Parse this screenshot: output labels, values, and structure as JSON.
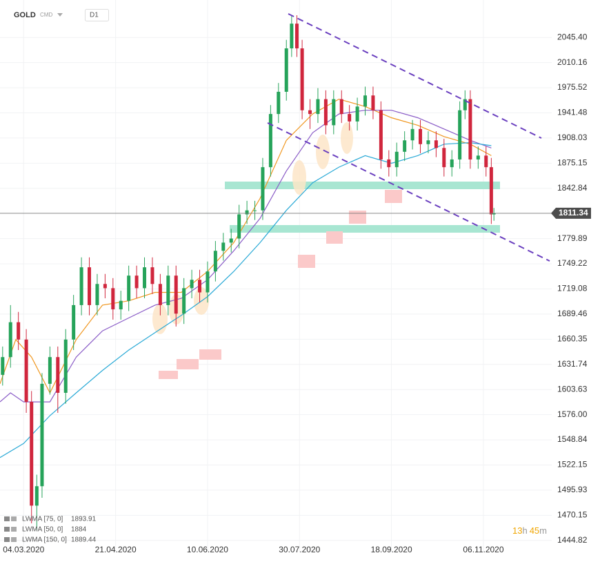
{
  "chart_data": {
    "type": "candlestick",
    "title": "GOLD",
    "subtitle": "CMD",
    "interval": "D1",
    "log_scale": true,
    "grid": true,
    "up_color": "#26a35a",
    "down_color": "#d0263d",
    "ylim": [
      1433,
      2099
    ],
    "xlim": [
      -9,
      201
    ],
    "yticks": [
      {
        "value": 2045.4,
        "label": "2045.40"
      },
      2010.16,
      1975.52,
      1941.48,
      1908.03,
      1875.15,
      1842.84,
      1779.89,
      1749.22,
      1719.08,
      1689.46,
      1660.35,
      1631.74,
      1603.63,
      {
        "value": 1576,
        "label": "1576.00"
      },
      1548.84,
      1522.15,
      1495.93,
      1470.15,
      1444.82
    ],
    "xticks": [
      {
        "value": 0,
        "label": "04.03.2020"
      },
      {
        "value": 35,
        "label": "21.04.2020"
      },
      {
        "value": 70,
        "label": "10.06.2020"
      },
      {
        "value": 105,
        "label": "30.07.2020"
      },
      {
        "value": 140,
        "label": "18.09.2020"
      },
      {
        "value": 175,
        "label": "06.11.2020"
      }
    ],
    "last_price": 1811.34,
    "countdown": [
      "13",
      "h",
      "45",
      "m"
    ],
    "x": [
      -8,
      -5,
      -2,
      1,
      3,
      5,
      7,
      10,
      13,
      16,
      19,
      22,
      25,
      28,
      31,
      34,
      37,
      40,
      43,
      46,
      49,
      52,
      55,
      58,
      61,
      64,
      67,
      70,
      73,
      76,
      79,
      82,
      85,
      88,
      91,
      94,
      97,
      100,
      102,
      104,
      106,
      109,
      112,
      115,
      118,
      121,
      124,
      127,
      130,
      133,
      136,
      139,
      142,
      145,
      148,
      151,
      154,
      157,
      160,
      163,
      166,
      168,
      170,
      173,
      176,
      178,
      179
    ],
    "open": [
      1620,
      1640,
      1680,
      1660,
      1590,
      1480,
      1500,
      1610,
      1640,
      1600,
      1660,
      1700,
      1745,
      1700,
      1725,
      1720,
      1695,
      1705,
      1735,
      1720,
      1745,
      1725,
      1700,
      1735,
      1690,
      1720,
      1730,
      1715,
      1740,
      1765,
      1775,
      1780,
      1810,
      1815,
      1815,
      1870,
      1940,
      1970,
      2030,
      2065,
      2030,
      1945,
      1940,
      1960,
      1925,
      1960,
      1940,
      1930,
      1950,
      1965,
      1945,
      1880,
      1870,
      1890,
      1905,
      1920,
      1900,
      1905,
      1895,
      1870,
      1880,
      1945,
      1960,
      1880,
      1885,
      1870,
      1810
    ],
    "high": [
      1652,
      1700,
      1692,
      1672,
      1602,
      1512,
      1622,
      1652,
      1652,
      1672,
      1712,
      1757,
      1757,
      1737,
      1737,
      1732,
      1717,
      1747,
      1747,
      1757,
      1757,
      1737,
      1747,
      1747,
      1732,
      1742,
      1742,
      1752,
      1777,
      1787,
      1792,
      1822,
      1827,
      1827,
      1882,
      1952,
      1982,
      2042,
      2077,
      2077,
      2042,
      1960,
      1975,
      1972,
      1972,
      1972,
      1952,
      1962,
      1977,
      1977,
      1957,
      1892,
      1902,
      1917,
      1932,
      1932,
      1917,
      1917,
      1907,
      1892,
      1957,
      1972,
      1972,
      1897,
      1897,
      1882,
      1818
    ],
    "low": [
      1608,
      1628,
      1648,
      1578,
      1462,
      1455,
      1488,
      1598,
      1578,
      1588,
      1648,
      1688,
      1688,
      1688,
      1708,
      1683,
      1683,
      1693,
      1708,
      1708,
      1713,
      1688,
      1688,
      1675,
      1678,
      1708,
      1703,
      1703,
      1728,
      1753,
      1763,
      1768,
      1798,
      1803,
      1803,
      1858,
      1928,
      1958,
      2018,
      2018,
      1933,
      1920,
      1928,
      1913,
      1913,
      1928,
      1918,
      1918,
      1938,
      1933,
      1868,
      1858,
      1858,
      1878,
      1893,
      1888,
      1888,
      1883,
      1858,
      1858,
      1868,
      1933,
      1868,
      1868,
      1858,
      1798,
      1802
    ],
    "close": [
      1640,
      1680,
      1660,
      1590,
      1480,
      1500,
      1610,
      1640,
      1600,
      1660,
      1700,
      1745,
      1700,
      1725,
      1720,
      1695,
      1705,
      1735,
      1720,
      1745,
      1725,
      1700,
      1735,
      1690,
      1720,
      1730,
      1715,
      1740,
      1765,
      1775,
      1780,
      1810,
      1815,
      1815,
      1870,
      1940,
      1970,
      2030,
      2065,
      2030,
      1945,
      1940,
      1960,
      1925,
      1960,
      1940,
      1930,
      1950,
      1965,
      1945,
      1880,
      1870,
      1890,
      1905,
      1920,
      1900,
      1905,
      1895,
      1870,
      1880,
      1945,
      1960,
      1880,
      1885,
      1870,
      1810,
      1811.34
    ],
    "series": [
      {
        "name": "LWMA [75, 0]",
        "legend_value": 1893.91,
        "color": "#f0961e",
        "x": [
          -9,
          -3,
          3,
          10,
          20,
          30,
          40,
          50,
          60,
          70,
          80,
          90,
          100,
          110,
          120,
          130,
          140,
          150,
          160,
          170,
          178
        ],
        "values": [
          1610,
          1660,
          1640,
          1600,
          1660,
          1700,
          1705,
          1715,
          1715,
          1740,
          1775,
          1830,
          1905,
          1940,
          1960,
          1950,
          1935,
          1925,
          1910,
          1900,
          1885
        ]
      },
      {
        "name": "LWMA [50, 0]",
        "legend_value": 1884.0,
        "color": "#8a5cc7",
        "x": [
          -9,
          -5,
          0,
          10,
          20,
          30,
          40,
          50,
          60,
          70,
          80,
          90,
          100,
          110,
          120,
          130,
          140,
          150,
          160,
          170,
          178
        ],
        "values": [
          1590,
          1600,
          1590,
          1590,
          1640,
          1670,
          1685,
          1700,
          1708,
          1730,
          1765,
          1805,
          1865,
          1915,
          1940,
          1945,
          1945,
          1935,
          1920,
          1905,
          1895
        ]
      },
      {
        "name": "LWMA [150, 0]",
        "legend_value": 1889.44,
        "color": "#29a9d6",
        "x": [
          -9,
          0,
          10,
          20,
          30,
          40,
          50,
          60,
          70,
          80,
          90,
          100,
          110,
          120,
          130,
          140,
          150,
          160,
          170,
          178
        ],
        "values": [
          1530,
          1545,
          1575,
          1600,
          1625,
          1648,
          1668,
          1688,
          1710,
          1740,
          1775,
          1815,
          1850,
          1870,
          1885,
          1875,
          1885,
          1900,
          1902,
          1898
        ]
      }
    ]
  }
}
